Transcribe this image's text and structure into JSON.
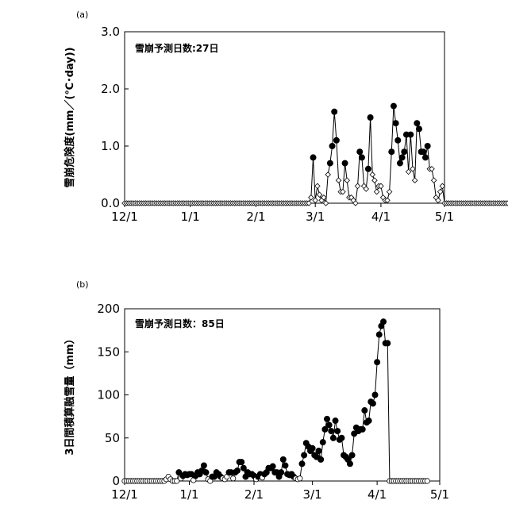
{
  "chart_data": [
    {
      "type": "line",
      "panel_label": "(a)",
      "ylabel": "雪崩危険度(mm／(℃･day))",
      "annotation": "雪崩予測日数:27日",
      "ylim": [
        0,
        3.0
      ],
      "yticks": [
        "0.0",
        "1.0",
        "2.0",
        "3.0"
      ],
      "xlim": [
        "12/1",
        "5/1"
      ],
      "xticks": [
        "12/1",
        "1/1",
        "2/1",
        "3/1",
        "4/1",
        "5/1"
      ],
      "grid": false,
      "legend": "none",
      "x_start": "12/1",
      "marker_style": [
        "filled-circle",
        "open-diamond"
      ],
      "note": "values listed day by day from 12/1; flag 1 = filled circle (avalanche predicted), 0 = open diamond",
      "values": [
        0,
        0,
        0,
        0,
        0,
        0,
        0,
        0,
        0,
        0,
        0,
        0,
        0,
        0,
        0,
        0,
        0,
        0,
        0,
        0,
        0,
        0,
        0,
        0,
        0,
        0,
        0,
        0,
        0,
        0,
        0,
        0,
        0,
        0,
        0,
        0,
        0,
        0,
        0,
        0,
        0,
        0,
        0,
        0,
        0,
        0,
        0,
        0,
        0,
        0,
        0,
        0,
        0,
        0,
        0,
        0,
        0,
        0,
        0,
        0,
        0,
        0,
        0,
        0,
        0,
        0,
        0,
        0,
        0,
        0,
        0,
        0,
        0,
        0,
        0,
        0,
        0,
        0,
        0,
        0,
        0,
        0,
        0,
        0,
        0,
        0,
        0,
        0,
        0.1,
        0.8,
        0.05,
        0.3,
        0.15,
        0.05,
        0.1,
        0,
        0.5,
        0.7,
        1.0,
        1.6,
        1.1,
        0.4,
        0.2,
        0.2,
        0.7,
        0.4,
        0.1,
        0.1,
        0.05,
        0,
        0.3,
        0.9,
        0.8,
        0.3,
        0.25,
        0.6,
        1.5,
        0.5,
        0.4,
        0.2,
        0.3,
        0.3,
        0.1,
        0.05,
        0.05,
        0.2,
        0.9,
        1.7,
        1.4,
        1.1,
        0.7,
        0.8,
        0.9,
        1.2,
        0.55,
        1.2,
        0.6,
        0.4,
        1.4,
        1.3,
        0.9,
        0.9,
        0.8,
        1.0,
        0.6,
        0.6,
        0.4,
        0.1,
        0.05,
        0.2,
        0.3,
        0,
        0,
        0,
        0,
        0,
        0,
        0,
        0,
        0,
        0,
        0,
        0,
        0,
        0,
        0,
        0,
        0,
        0,
        0,
        0,
        0,
        0,
        0,
        0,
        0,
        0,
        0,
        0,
        0,
        0,
        0
      ],
      "flags": [
        0,
        0,
        0,
        0,
        0,
        0,
        0,
        0,
        0,
        0,
        0,
        0,
        0,
        0,
        0,
        0,
        0,
        0,
        0,
        0,
        0,
        0,
        0,
        0,
        0,
        0,
        0,
        0,
        0,
        0,
        0,
        0,
        0,
        0,
        0,
        0,
        0,
        0,
        0,
        0,
        0,
        0,
        0,
        0,
        0,
        0,
        0,
        0,
        0,
        0,
        0,
        0,
        0,
        0,
        0,
        0,
        0,
        0,
        0,
        0,
        0,
        0,
        0,
        0,
        0,
        0,
        0,
        0,
        0,
        0,
        0,
        0,
        0,
        0,
        0,
        0,
        0,
        0,
        0,
        0,
        0,
        0,
        0,
        0,
        0,
        0,
        0,
        0,
        0,
        1,
        0,
        0,
        0,
        0,
        0,
        0,
        0,
        1,
        1,
        1,
        1,
        0,
        0,
        0,
        1,
        0,
        0,
        0,
        0,
        0,
        0,
        1,
        1,
        0,
        0,
        1,
        1,
        0,
        0,
        0,
        0,
        0,
        0,
        0,
        0,
        0,
        1,
        1,
        1,
        1,
        1,
        1,
        1,
        1,
        0,
        1,
        0,
        0,
        1,
        1,
        1,
        1,
        1,
        1,
        0,
        0,
        0,
        0,
        0,
        0,
        0,
        0,
        0,
        0,
        0,
        0,
        0,
        0,
        0,
        0,
        0,
        0,
        0,
        0,
        0,
        0,
        0,
        0,
        0,
        0,
        0,
        0,
        0,
        0,
        0,
        0,
        0,
        0,
        0,
        0,
        0,
        0,
        0
      ]
    },
    {
      "type": "line",
      "panel_label": "(b)",
      "ylabel": "3日間積算融雪量（mm）",
      "annotation": "雪崩予測日数：85日",
      "ylim": [
        0,
        200
      ],
      "yticks": [
        "0",
        "50",
        "100",
        "150",
        "200"
      ],
      "xlim": [
        "12/1",
        "5/1"
      ],
      "xticks": [
        "12/1",
        "1/1",
        "2/1",
        "3/1",
        "4/1",
        "5/1"
      ],
      "grid": false,
      "legend": "none",
      "x_start": "12/1",
      "marker_style": [
        "filled-circle",
        "open-circle"
      ],
      "note": "values listed day by day from 12/1; flag 1 = filled circle (avalanche predicted), 0 = open circle",
      "values": [
        0,
        0,
        0,
        0,
        0,
        0,
        0,
        0,
        0,
        0,
        0,
        0,
        0,
        0,
        0,
        0,
        0,
        0,
        0,
        0,
        2,
        5,
        2,
        0,
        0,
        0,
        10,
        3,
        6,
        8,
        7,
        8,
        8,
        1,
        6,
        10,
        8,
        12,
        18,
        10,
        2,
        0,
        5,
        5,
        10,
        8,
        5,
        3,
        2,
        5,
        10,
        10,
        3,
        10,
        12,
        22,
        22,
        15,
        5,
        10,
        8,
        8,
        6,
        2,
        5,
        8,
        4,
        8,
        10,
        15,
        15,
        17,
        10,
        10,
        5,
        10,
        25,
        18,
        8,
        7,
        8,
        5,
        3,
        2,
        3,
        20,
        30,
        44,
        40,
        35,
        38,
        30,
        28,
        35,
        25,
        45,
        60,
        72,
        65,
        58,
        50,
        70,
        58,
        48,
        50,
        30,
        28,
        25,
        20,
        30,
        55,
        62,
        58,
        60,
        60,
        82,
        68,
        70,
        92,
        90,
        100,
        138,
        170,
        180,
        185,
        160,
        160,
        0,
        0,
        0,
        0,
        0,
        0,
        0,
        0,
        0,
        0,
        0,
        0,
        0,
        0,
        0,
        0,
        0,
        0,
        0
      ],
      "flags": [
        0,
        0,
        0,
        0,
        0,
        0,
        0,
        0,
        0,
        0,
        0,
        0,
        0,
        0,
        0,
        0,
        0,
        0,
        0,
        0,
        0,
        0,
        0,
        0,
        0,
        0,
        1,
        0,
        1,
        1,
        1,
        1,
        1,
        0,
        1,
        1,
        1,
        1,
        1,
        1,
        0,
        0,
        1,
        1,
        1,
        1,
        1,
        0,
        0,
        0,
        1,
        1,
        0,
        1,
        1,
        1,
        1,
        1,
        1,
        1,
        1,
        1,
        1,
        0,
        1,
        1,
        0,
        1,
        1,
        1,
        1,
        1,
        1,
        1,
        1,
        1,
        1,
        1,
        1,
        1,
        1,
        1,
        0,
        0,
        0,
        1,
        1,
        1,
        1,
        1,
        1,
        1,
        1,
        1,
        1,
        1,
        1,
        1,
        1,
        1,
        1,
        1,
        1,
        1,
        1,
        1,
        1,
        1,
        1,
        1,
        1,
        1,
        1,
        1,
        1,
        1,
        1,
        1,
        1,
        1,
        1,
        1,
        1,
        1,
        1,
        1,
        1,
        0,
        0,
        0,
        0,
        0,
        0,
        0,
        0,
        0,
        0,
        0,
        0,
        0,
        0,
        0,
        0,
        0,
        0,
        0
      ]
    }
  ]
}
